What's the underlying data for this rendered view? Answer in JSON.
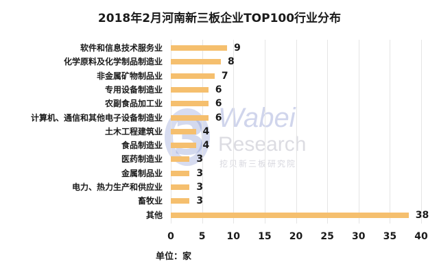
{
  "chart_data": {
    "type": "bar",
    "orientation": "horizontal",
    "title": "2018年2月河南新三板企业TOP100行业分布",
    "xlabel": "单位：家",
    "ylabel": "",
    "xlim": [
      0,
      40
    ],
    "xticks": [
      "0",
      "5",
      "10",
      "15",
      "20",
      "25",
      "30",
      "35",
      "40"
    ],
    "grid": true,
    "legend": null,
    "bar_color": "#f5bf6e",
    "categories": [
      "软件和信息技术服务业",
      "化学原料及化学制品制造业",
      "非金属矿物制品业",
      "专用设备制造业",
      "农副食品加工业",
      "计算机、通信和其他电子设备制造业",
      "土木工程建筑业",
      "食品制造业",
      "医药制造业",
      "金属制品业",
      "电力、热力生产和供应业",
      "畜牧业",
      "其他"
    ],
    "values": [
      9,
      8,
      7,
      6,
      6,
      6,
      4,
      4,
      3,
      3,
      3,
      3,
      38
    ],
    "labels": [
      "9",
      "8",
      "7",
      "6",
      "6",
      "6",
      "4",
      "4",
      "3",
      "3",
      "3",
      "3",
      "38"
    ]
  },
  "watermark": {
    "logo_glyph": "3",
    "line1": "Wabei",
    "line2": "Research",
    "line3": "挖贝新三板研究院"
  }
}
